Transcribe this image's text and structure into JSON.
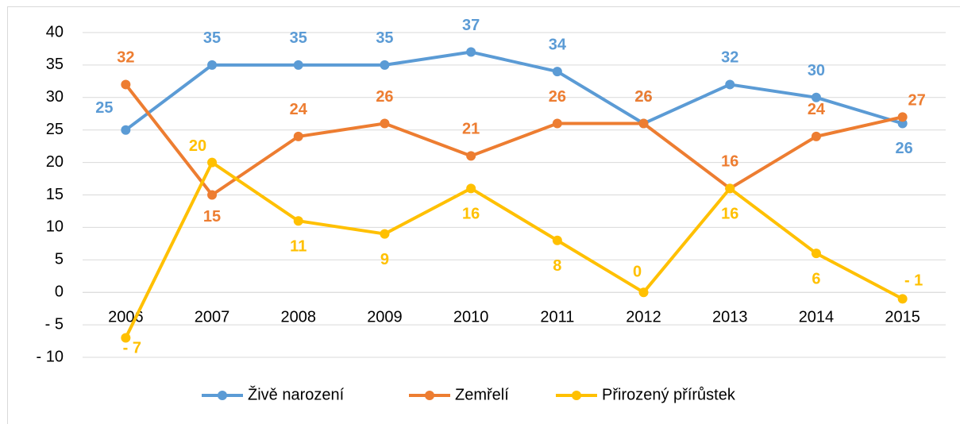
{
  "chart_data": {
    "type": "line",
    "categories": [
      "2006",
      "2007",
      "2008",
      "2009",
      "2010",
      "2011",
      "2012",
      "2013",
      "2014",
      "2015"
    ],
    "series": [
      {
        "name": "Živě narození",
        "color": "#5b9bd5",
        "values": [
          25,
          35,
          35,
          35,
          37,
          34,
          26,
          32,
          30,
          26
        ]
      },
      {
        "name": "Zemřelí",
        "color": "#ed7d31",
        "values": [
          32,
          15,
          24,
          26,
          21,
          26,
          26,
          16,
          24,
          27
        ]
      },
      {
        "name": "Přirozený přírůstek",
        "color": "#ffc000",
        "values": [
          -7,
          20,
          11,
          9,
          16,
          8,
          0,
          16,
          6,
          -1
        ],
        "value_labels": [
          "- 7",
          "20",
          "11",
          "9",
          "16",
          "8",
          "0",
          "16",
          "6",
          "- 1"
        ]
      }
    ],
    "ylim": [
      -10,
      40
    ],
    "yticks": [
      {
        "value": -10,
        "label": "- 10"
      },
      {
        "value": -5,
        "label": "- 5"
      },
      0,
      5,
      10,
      15,
      20,
      25,
      30,
      35,
      40
    ],
    "grid": true,
    "legend": "bottom"
  }
}
